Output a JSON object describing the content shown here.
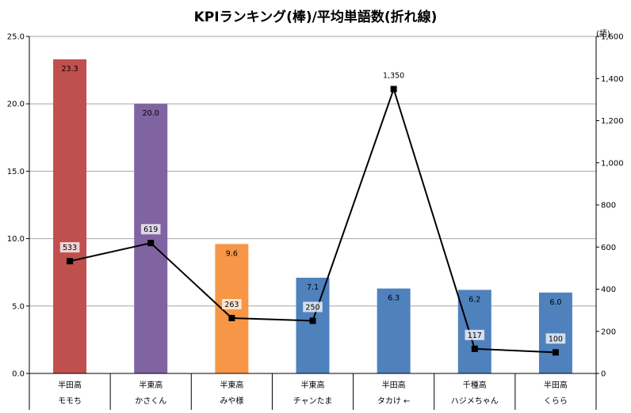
{
  "chart_data": {
    "title": "KPIランキング(棒)/平均単語数(折れ線)",
    "y2_unit": "(語)",
    "categories": [
      {
        "school": "半田高",
        "name": "モモち"
      },
      {
        "school": "半東高",
        "name": "かさくん"
      },
      {
        "school": "半東高",
        "name": "みや様"
      },
      {
        "school": "半東高",
        "name": "チャンたま"
      },
      {
        "school": "半田高",
        "name": "タカけ ←"
      },
      {
        "school": "千種高",
        "name": "ハジメちゃん"
      },
      {
        "school": "半田高",
        "name": "くらら"
      }
    ],
    "series": [
      {
        "type": "bar",
        "axis": "left",
        "values": [
          23.3,
          20.0,
          9.6,
          7.1,
          6.3,
          6.2,
          6.0
        ],
        "labels": [
          "23.3",
          "20.0",
          "9.6",
          "7.1",
          "6.3",
          "6.2",
          "6.0"
        ],
        "colors": [
          "#c0504d",
          "#8064a2",
          "#f79646",
          "#4f81bd",
          "#4f81bd",
          "#4f81bd",
          "#4f81bd"
        ]
      },
      {
        "type": "line",
        "axis": "right",
        "values": [
          533,
          619,
          263,
          250,
          1350,
          117,
          100
        ],
        "labels": [
          "533",
          "619",
          "263",
          "250",
          "1,350",
          "117",
          "100"
        ],
        "color": "#000000"
      }
    ],
    "y_axis": {
      "min": 0,
      "max": 25,
      "ticks": [
        "0.0",
        "5.0",
        "10.0",
        "15.0",
        "20.0",
        "25.0"
      ]
    },
    "y2_axis": {
      "min": 0,
      "max": 1600,
      "ticks": [
        "0",
        "200",
        "400",
        "600",
        "800",
        "1,000",
        "1,200",
        "1,400",
        "1,600"
      ]
    },
    "grid": true
  }
}
